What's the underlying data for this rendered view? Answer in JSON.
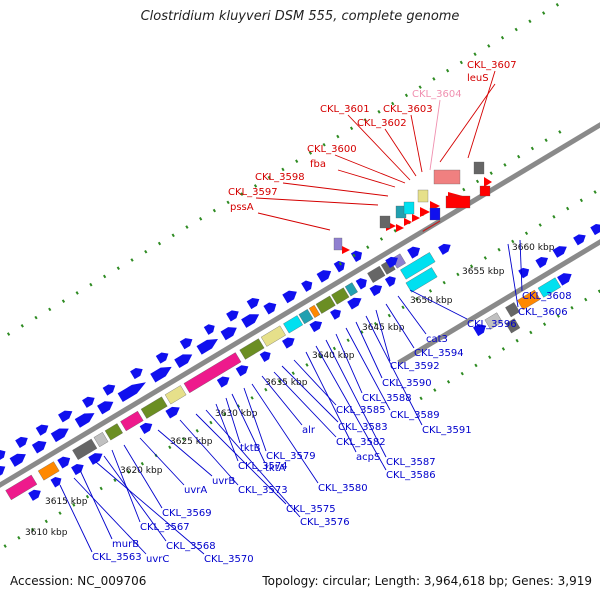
{
  "title": "Clostridium kluyveri DSM 555, complete genome",
  "footer": {
    "accession": "Accession: NC_009706",
    "summary": "Topology: circular; Length: 3,964,618 bp; Genes: 3,919"
  },
  "colors": {
    "backbone": "#8a8a8a",
    "tick": "#2e8b22",
    "forward_label": "#d40000",
    "highlight_label": "#f090b0",
    "reverse_label": "#0000cc",
    "cds_blue": "#1010ee",
    "cds_red": "#ff0000",
    "magenta": "#ee1a8c",
    "olive": "#6b8e23",
    "khaki": "#e6e08a",
    "cyan": "#00e0f0",
    "teal": "#22a0b0",
    "orange": "#ff8800",
    "grey": "#666666",
    "lightgrey": "#c0c0c0",
    "salmon": "#f08080",
    "lavender": "#9080d0"
  },
  "ticks": [
    "3610 kbp",
    "3615 kbp",
    "3620 kbp",
    "3625 kbp",
    "3630 kbp",
    "3635 kbp",
    "3640 kbp",
    "3645 kbp",
    "3650 kbp",
    "3655 kbp",
    "3660 kbp"
  ],
  "forward_labels": [
    "pssA",
    "CKL_3597",
    "CKL_3598",
    "fba",
    "CKL_3600",
    "CKL_3601",
    "CKL_3602",
    "CKL_3603",
    "CKL_3604",
    "leuS",
    "CKL_3607"
  ],
  "highlighted_label": "CKL_3604",
  "reverse_labels": [
    "CKL_3563",
    "uvrC",
    "murB",
    "CKL_3570",
    "CKL_3568",
    "CKL_3567",
    "CKL_3569",
    "uvrA",
    "uvrB",
    "CKL_3573",
    "CKL_3576",
    "CKL_3575",
    "CKL_3574",
    "tktB",
    "tktA",
    "CKL_3579",
    "CKL_3580",
    "alr",
    "CKL_3582",
    "CKL_3583",
    "CKL_3585",
    "acpS",
    "CKL_3586",
    "CKL_3587",
    "CKL_3588",
    "CKL_3589",
    "CKL_3590",
    "CKL_3591",
    "CKL_3592",
    "CKL_3594",
    "cat3",
    "CKL_3596",
    "CKL_3606",
    "CKL_3608"
  ]
}
